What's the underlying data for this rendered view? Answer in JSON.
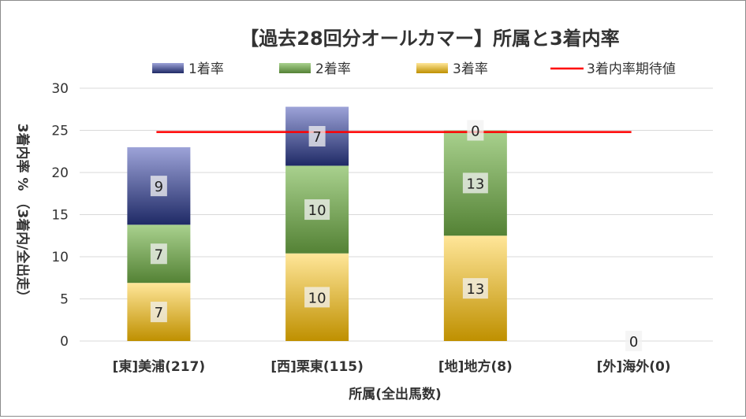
{
  "chart_data": {
    "type": "bar",
    "stacked": true,
    "title": "【過去28回分オールカマー】所属と3着内率",
    "xlabel": "所属(全出馬数)",
    "ylabel": "3着内率 % （3着内/全出走）",
    "ylim": [
      0,
      30
    ],
    "yticks": [
      0,
      5,
      10,
      15,
      20,
      25,
      30
    ],
    "grid": true,
    "legend_position": "top",
    "categories": [
      "[東]美浦(217)",
      "[西]栗東(115)",
      "[地]地方(8)",
      "[外]海外(0)"
    ],
    "series": [
      {
        "name": "3着率",
        "values": [
          6.9,
          10.4,
          12.5,
          0
        ],
        "labels": [
          "7",
          "10",
          "13",
          null
        ],
        "color_top": "#ffe699",
        "color_bottom": "#bf9000"
      },
      {
        "name": "2着率",
        "values": [
          6.9,
          10.4,
          12.5,
          0
        ],
        "labels": [
          "7",
          "10",
          "13",
          null
        ],
        "color_top": "#a9d18e",
        "color_bottom": "#548235"
      },
      {
        "name": "1着率",
        "values": [
          9.2,
          7.0,
          0,
          0
        ],
        "labels": [
          "9",
          "7",
          "0",
          "0"
        ],
        "color_top": "#9da3d8",
        "color_bottom": "#1f2a66"
      }
    ],
    "reference_line": {
      "name": "3着内率期待値",
      "value": 24.8,
      "color": "#ff0000"
    }
  }
}
